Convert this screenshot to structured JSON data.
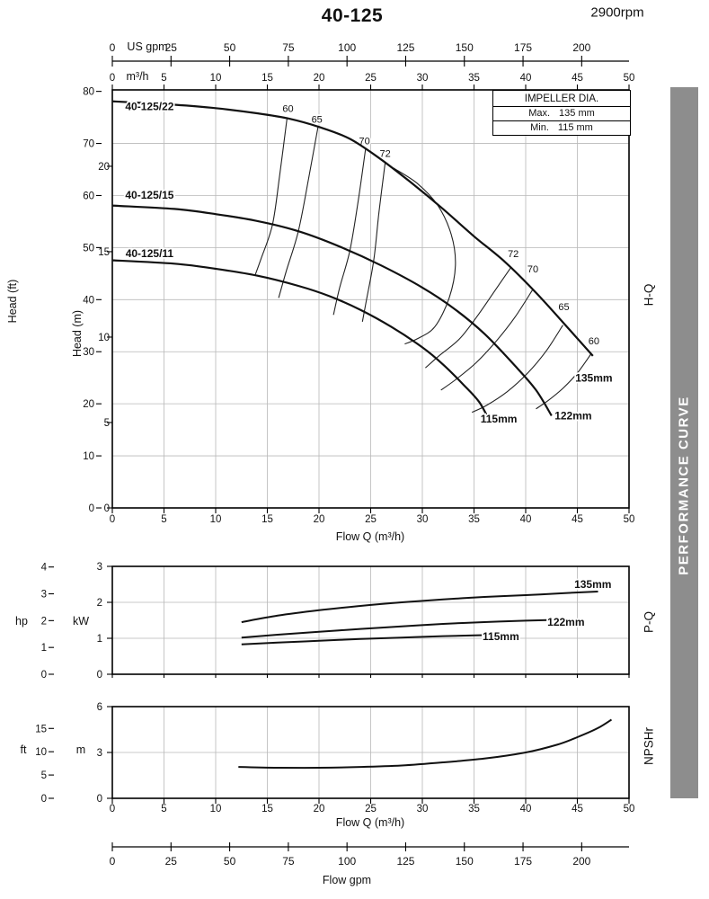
{
  "header": {
    "title": "40-125",
    "rpm": "2900rpm"
  },
  "side": {
    "banner": "PERFORMANCE CURVE",
    "sections": [
      "H-Q",
      "P-Q",
      "NPSHr"
    ]
  },
  "impeller_box": {
    "title": "IMPELLER DIA.",
    "rows": [
      {
        "label": "Max.",
        "value": "135 mm"
      },
      {
        "label": "Min.",
        "value": "115 mm"
      }
    ]
  },
  "bottom_axis": {
    "label": "Flow gpm",
    "ticks": [
      0,
      25,
      50,
      75,
      100,
      125,
      150,
      175,
      200
    ]
  },
  "chart_data": [
    {
      "id": "hq",
      "type": "line",
      "name": "H-Q head-flow curves",
      "x_axis": {
        "label": "Flow Q (m³/h)",
        "unit": "m³/h",
        "min": 0,
        "max": 50,
        "ticks": [
          0,
          5,
          10,
          15,
          20,
          25,
          30,
          35,
          40,
          45,
          50
        ]
      },
      "x_axis_gpm": {
        "label": "US gpm",
        "ticks": [
          0,
          25,
          50,
          75,
          100,
          125,
          150,
          175,
          200
        ]
      },
      "y_axis_primary": {
        "label": "Head (m)",
        "min": 0,
        "max": 24.47,
        "ticks": [
          0,
          5,
          10,
          15,
          20
        ]
      },
      "y_axis_secondary": {
        "label": "Head (ft)",
        "ticks": [
          0,
          10,
          20,
          30,
          40,
          50,
          60,
          70,
          80
        ]
      },
      "series": [
        {
          "name": "135mm",
          "curve_label": "40-125/22",
          "points": [
            [
              0,
              23.8
            ],
            [
              6,
              23.6
            ],
            [
              10,
              23.4
            ],
            [
              14,
              23.1
            ],
            [
              17,
              22.8
            ],
            [
              20,
              22.3
            ],
            [
              23,
              21.6
            ],
            [
              26,
              20.4
            ],
            [
              29,
              19.0
            ],
            [
              32,
              17.5
            ],
            [
              35,
              15.9
            ],
            [
              38,
              14.4
            ],
            [
              41,
              12.6
            ],
            [
              44,
              10.6
            ],
            [
              46.5,
              8.9
            ]
          ]
        },
        {
          "name": "122mm",
          "curve_label": "40-125/15",
          "points": [
            [
              0,
              17.7
            ],
            [
              6,
              17.5
            ],
            [
              10,
              17.2
            ],
            [
              14,
              16.8
            ],
            [
              18,
              16.2
            ],
            [
              22,
              15.3
            ],
            [
              26,
              14.2
            ],
            [
              30,
              12.9
            ],
            [
              33,
              11.7
            ],
            [
              36,
              10.2
            ],
            [
              39,
              8.3
            ],
            [
              41,
              6.9
            ],
            [
              42.5,
              5.4
            ]
          ]
        },
        {
          "name": "115mm",
          "curve_label": "40-125/11",
          "points": [
            [
              0,
              14.5
            ],
            [
              6,
              14.3
            ],
            [
              10,
              14.0
            ],
            [
              14,
              13.6
            ],
            [
              18,
              13.0
            ],
            [
              21,
              12.4
            ],
            [
              24,
              11.6
            ],
            [
              27,
              10.6
            ],
            [
              30,
              9.4
            ],
            [
              32,
              8.4
            ],
            [
              34,
              7.2
            ],
            [
              35.5,
              6.2
            ],
            [
              36.5,
              5.1
            ]
          ]
        }
      ],
      "series_labels": [
        {
          "text": "135mm",
          "x": 46.6,
          "y": 7.6
        },
        {
          "text": "122mm",
          "x": 44.6,
          "y": 5.4
        },
        {
          "text": "115mm",
          "x": 37.4,
          "y": 5.2
        }
      ],
      "curve_name_labels": [
        {
          "text": "40-125/22",
          "x": 3.6,
          "y": 23.5
        },
        {
          "text": "40-125/15",
          "x": 3.6,
          "y": 18.3
        },
        {
          "text": "40-125/11",
          "x": 3.6,
          "y": 14.9
        }
      ],
      "efficiency_lines": [
        {
          "label": "60",
          "label_pos": {
            "x": 17.0,
            "y": 23.4
          },
          "points": [
            [
              16.9,
              22.8
            ],
            [
              16.2,
              19.5
            ],
            [
              15.5,
              16.6
            ],
            [
              14.4,
              14.6
            ],
            [
              13.8,
              13.6
            ]
          ]
        },
        {
          "label": "65",
          "label_pos": {
            "x": 19.8,
            "y": 22.75
          },
          "points": [
            [
              19.9,
              22.3
            ],
            [
              19.0,
              19.3
            ],
            [
              18.0,
              16.2
            ],
            [
              16.8,
              13.8
            ],
            [
              16.1,
              12.3
            ]
          ]
        },
        {
          "label": "70",
          "label_pos": {
            "x": 24.4,
            "y": 21.5
          },
          "points": [
            [
              24.5,
              21.0
            ],
            [
              23.8,
              18.0
            ],
            [
              23.0,
              15.1
            ],
            [
              22.0,
              12.9
            ],
            [
              21.4,
              11.3
            ]
          ]
        },
        {
          "label": "72",
          "label_pos": {
            "x": 26.4,
            "y": 20.75
          },
          "points": [
            [
              26.4,
              20.2
            ],
            [
              25.8,
              17.3
            ],
            [
              25.3,
              14.5
            ],
            [
              24.6,
              12.2
            ],
            [
              24.2,
              10.9
            ]
          ]
        },
        {
          "label": "",
          "label_pos": null,
          "points": [
            [
              27.2,
              19.9
            ],
            [
              29.5,
              19.0
            ],
            [
              31.5,
              17.7
            ],
            [
              32.8,
              16.0
            ],
            [
              33.2,
              14.2
            ],
            [
              32.6,
              12.3
            ],
            [
              31.2,
              10.6
            ],
            [
              29.5,
              9.9
            ],
            [
              28.3,
              9.6
            ]
          ]
        },
        {
          "label": "72",
          "label_pos": {
            "x": 38.8,
            "y": 14.9
          },
          "points": [
            [
              38.6,
              14.1
            ],
            [
              37.0,
              12.7
            ],
            [
              35.4,
              11.3
            ],
            [
              33.6,
              9.9
            ],
            [
              31.6,
              8.9
            ],
            [
              30.3,
              8.2
            ]
          ]
        },
        {
          "label": "70",
          "label_pos": {
            "x": 40.7,
            "y": 14.0
          },
          "points": [
            [
              40.7,
              12.8
            ],
            [
              39.0,
              11.2
            ],
            [
              37.2,
              9.8
            ],
            [
              35.2,
              8.5
            ],
            [
              33.2,
              7.5
            ],
            [
              31.8,
              6.9
            ]
          ]
        },
        {
          "label": "65",
          "label_pos": {
            "x": 43.7,
            "y": 11.8
          },
          "points": [
            [
              43.6,
              10.7
            ],
            [
              42.0,
              9.2
            ],
            [
              40.2,
              7.9
            ],
            [
              38.2,
              6.8
            ],
            [
              36.2,
              6.0
            ],
            [
              34.8,
              5.6
            ]
          ]
        },
        {
          "label": "60",
          "label_pos": {
            "x": 46.6,
            "y": 9.8
          },
          "points": [
            [
              46.3,
              9.0
            ],
            [
              45.0,
              7.9
            ],
            [
              43.6,
              7.0
            ],
            [
              42.2,
              6.3
            ],
            [
              41.0,
              5.8
            ]
          ]
        }
      ]
    },
    {
      "id": "pq",
      "type": "line",
      "name": "P-Q power-flow curves",
      "x_axis": {
        "label": "",
        "min": 0,
        "max": 50,
        "ticks": []
      },
      "y_axis_primary": {
        "label": "kW",
        "min": 0,
        "max": 3,
        "ticks": [
          0,
          1,
          2,
          3
        ]
      },
      "y_axis_secondary": {
        "label": "hp",
        "ticks": [
          0,
          1,
          2,
          3,
          4
        ]
      },
      "series": [
        {
          "name": "135mm",
          "points": [
            [
              12.5,
              1.45
            ],
            [
              16,
              1.63
            ],
            [
              20,
              1.78
            ],
            [
              24,
              1.9
            ],
            [
              28,
              2.0
            ],
            [
              32,
              2.08
            ],
            [
              36,
              2.15
            ],
            [
              40,
              2.2
            ],
            [
              44,
              2.26
            ],
            [
              47,
              2.3
            ]
          ]
        },
        {
          "name": "122mm",
          "points": [
            [
              12.5,
              1.02
            ],
            [
              16,
              1.1
            ],
            [
              20,
              1.18
            ],
            [
              24,
              1.26
            ],
            [
              28,
              1.33
            ],
            [
              32,
              1.4
            ],
            [
              36,
              1.45
            ],
            [
              40,
              1.49
            ],
            [
              42.5,
              1.51
            ]
          ]
        },
        {
          "name": "115mm",
          "points": [
            [
              12.5,
              0.83
            ],
            [
              16,
              0.88
            ],
            [
              20,
              0.93
            ],
            [
              24,
              0.98
            ],
            [
              28,
              1.02
            ],
            [
              32,
              1.06
            ],
            [
              35,
              1.08
            ],
            [
              36.5,
              1.09
            ]
          ]
        }
      ],
      "series_labels": [
        {
          "text": "135mm",
          "x": 46.5,
          "y": 2.5
        },
        {
          "text": "122mm",
          "x": 43.9,
          "y": 1.45
        },
        {
          "text": "115mm",
          "x": 37.6,
          "y": 1.05
        }
      ]
    },
    {
      "id": "npshr",
      "type": "line",
      "name": "NPSHr curve",
      "x_axis": {
        "label": "Flow Q (m³/h)",
        "min": 0,
        "max": 50,
        "ticks": [
          0,
          5,
          10,
          15,
          20,
          25,
          30,
          35,
          40,
          45,
          50
        ]
      },
      "y_axis_primary": {
        "label": "m",
        "min": 0,
        "max": 6,
        "ticks": [
          0,
          3,
          6
        ]
      },
      "y_axis_secondary": {
        "label": "ft",
        "ticks": [
          0,
          5,
          10,
          15
        ]
      },
      "series": [
        {
          "name": "NPSHr",
          "points": [
            [
              12.2,
              2.05
            ],
            [
              16,
              2.0
            ],
            [
              20,
              2.0
            ],
            [
              24,
              2.05
            ],
            [
              28,
              2.15
            ],
            [
              32,
              2.35
            ],
            [
              36,
              2.6
            ],
            [
              40,
              3.0
            ],
            [
              43,
              3.5
            ],
            [
              45,
              4.0
            ],
            [
              47,
              4.6
            ],
            [
              48.3,
              5.15
            ]
          ]
        }
      ],
      "series_labels": []
    }
  ]
}
